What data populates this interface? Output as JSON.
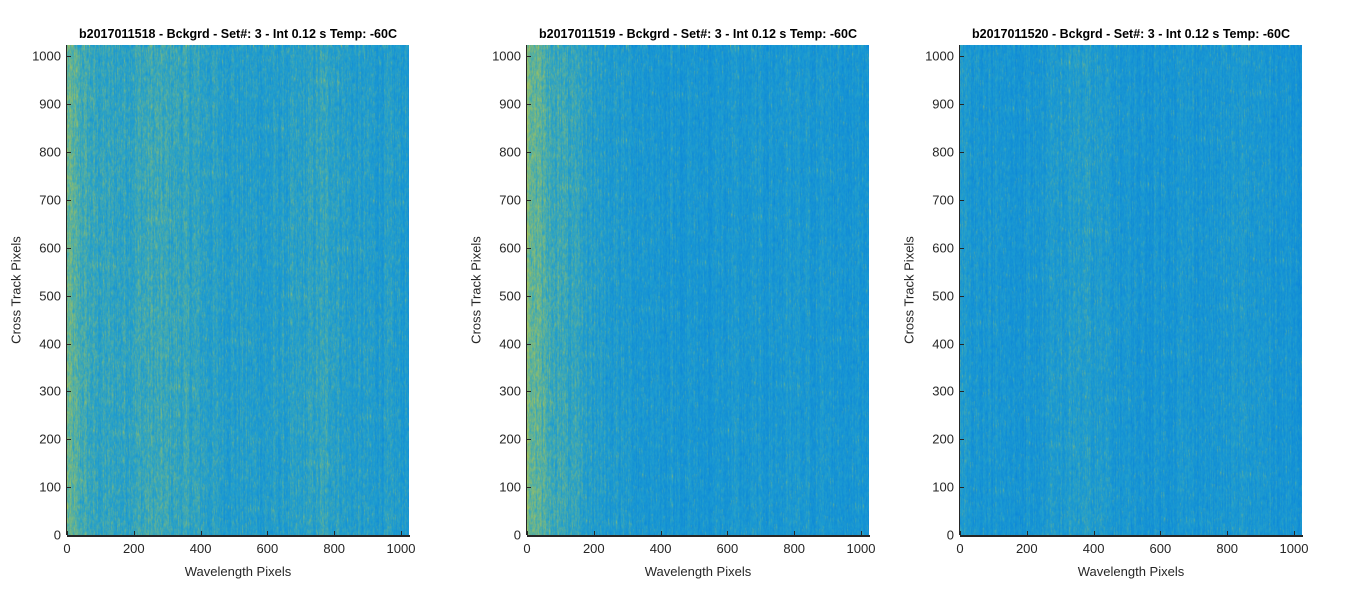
{
  "chart_data": [
    {
      "type": "heatmap",
      "title": "b2017011518 - Bckgrd - Set#: 3 - Int 0.12 s Temp: -60C",
      "xlabel": "Wavelength Pixels",
      "ylabel": "Cross Track Pixels",
      "xlim": [
        0,
        1024
      ],
      "ylim": [
        0,
        1024
      ],
      "xticks": [
        0,
        200,
        400,
        600,
        800,
        1000
      ],
      "yticks": [
        0,
        100,
        200,
        300,
        400,
        500,
        600,
        700,
        800,
        900,
        1000
      ],
      "colors": {
        "base": "#21a1cf",
        "low": "#0b86d9",
        "high": "#a9c456"
      },
      "intensity_profile": {
        "x": [
          0,
          30,
          80,
          150,
          250,
          350,
          450,
          600,
          700,
          780,
          850,
          1024
        ],
        "level": [
          0.75,
          0.62,
          0.5,
          0.48,
          0.55,
          0.5,
          0.42,
          0.38,
          0.42,
          0.5,
          0.38,
          0.36
        ]
      }
    },
    {
      "type": "heatmap",
      "title": "b2017011519 - Bckgrd - Set#: 3 - Int 0.12 s Temp: -60C",
      "xlabel": "Wavelength Pixels",
      "ylabel": "Cross Track Pixels",
      "xlim": [
        0,
        1024
      ],
      "ylim": [
        0,
        1024
      ],
      "xticks": [
        0,
        200,
        400,
        600,
        800,
        1000
      ],
      "yticks": [
        0,
        100,
        200,
        300,
        400,
        500,
        600,
        700,
        800,
        900,
        1000
      ],
      "colors": {
        "base": "#21a1cf",
        "low": "#0b86d9",
        "high": "#a9c456"
      },
      "intensity_profile": {
        "x": [
          0,
          20,
          60,
          120,
          180,
          260,
          400,
          550,
          700,
          850,
          1024
        ],
        "level": [
          0.85,
          0.72,
          0.6,
          0.5,
          0.42,
          0.35,
          0.3,
          0.28,
          0.3,
          0.3,
          0.28
        ]
      }
    },
    {
      "type": "heatmap",
      "title": "b2017011520 - Bckgrd - Set#: 3 - Int 0.12 s Temp: -60C",
      "xlabel": "Wavelength Pixels",
      "ylabel": "Cross Track Pixels",
      "xlim": [
        0,
        1024
      ],
      "ylim": [
        0,
        1024
      ],
      "xticks": [
        0,
        200,
        400,
        600,
        800,
        1000
      ],
      "yticks": [
        0,
        100,
        200,
        300,
        400,
        500,
        600,
        700,
        800,
        900,
        1000
      ],
      "colors": {
        "base": "#21a1cf",
        "low": "#0b86d9",
        "high": "#a9c456"
      },
      "intensity_profile": {
        "x": [
          0,
          60,
          150,
          250,
          350,
          450,
          550,
          650,
          750,
          850,
          1024
        ],
        "level": [
          0.35,
          0.3,
          0.25,
          0.3,
          0.4,
          0.32,
          0.26,
          0.3,
          0.28,
          0.32,
          0.25
        ]
      }
    }
  ]
}
